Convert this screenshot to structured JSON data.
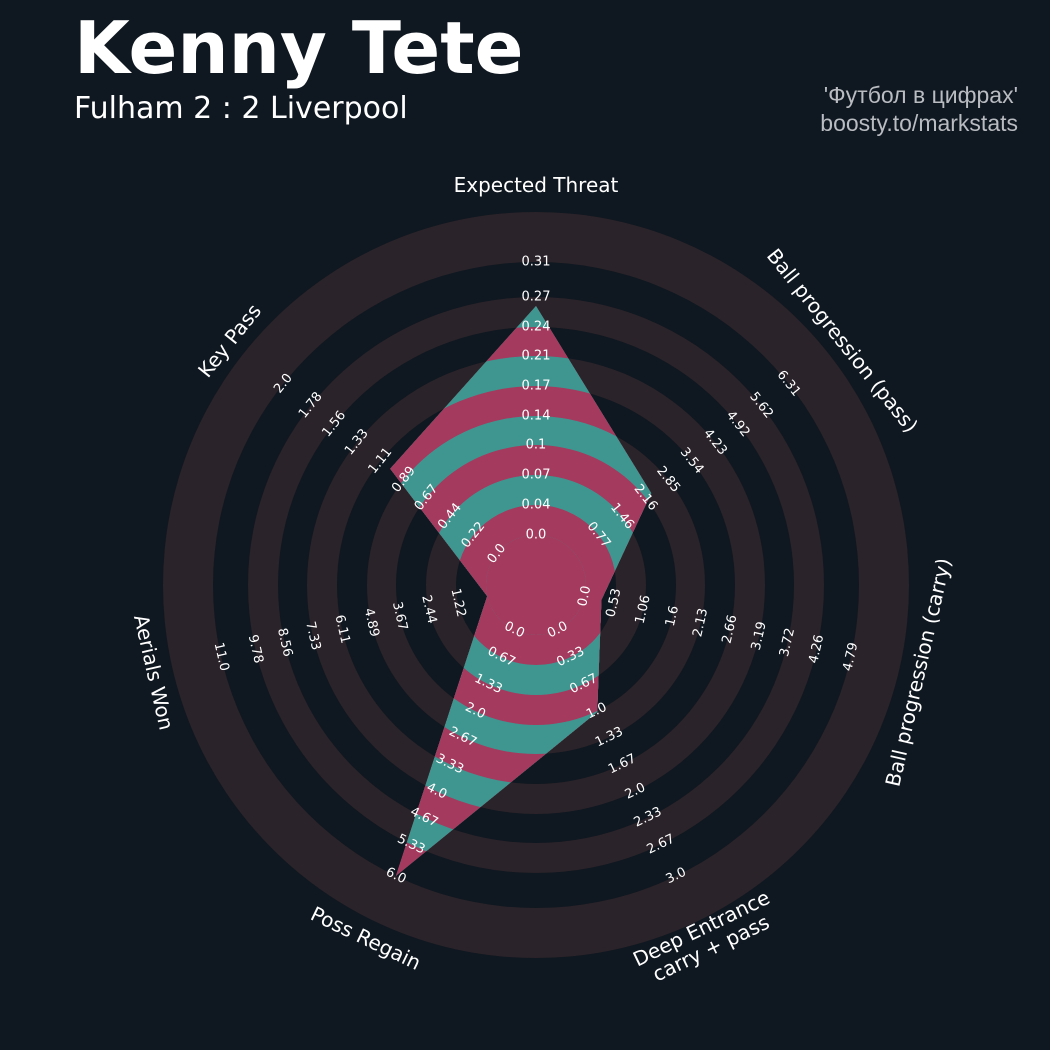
{
  "header": {
    "player": "Kenny Tete",
    "match": "Fulham 2 : 2 Liverpool",
    "credit_line1": "'Футбол в цифрах'",
    "credit_line2": "boosty.to/markstats"
  },
  "colors": {
    "background": "#0f1720",
    "ring_band": "#2a2329",
    "fill_a": "#a43a5e",
    "fill_b": "#3f9690",
    "text": "#ffffff",
    "muted": "#b9bcc1"
  },
  "chart_data": {
    "type": "radar",
    "title": "Kenny Tete",
    "subtitle": "Fulham 2 : 2 Liverpool",
    "axes": [
      {
        "label": "Expected Threat",
        "value": 0.26,
        "ticks": [
          "0.0",
          "0.04",
          "0.07",
          "0.1",
          "0.14",
          "0.17",
          "0.21",
          "0.24",
          "0.27",
          "0.31"
        ]
      },
      {
        "label": "Ball progression (pass)",
        "value": 2.3,
        "ticks": [
          "0.77",
          "1.46",
          "2.16",
          "2.85",
          "3.54",
          "4.23",
          "4.92",
          "5.62",
          "6.31"
        ]
      },
      {
        "label": "Ball progression (carry)",
        "value": 0.3,
        "ticks": [
          "0.0",
          "0.53",
          "1.06",
          "1.6",
          "2.13",
          "2.66",
          "3.19",
          "3.72",
          "4.26",
          "4.79"
        ]
      },
      {
        "label": "Deep Entrance carry + pass",
        "label_lines": [
          "Deep Entrance",
          "carry + pass"
        ],
        "value": 1.0,
        "ticks": [
          "0.0",
          "0.33",
          "0.67",
          "1.0",
          "1.33",
          "1.67",
          "2.0",
          "2.33",
          "2.67",
          "3.0"
        ]
      },
      {
        "label": "Poss Regain",
        "value": 6.0,
        "ticks": [
          "0.0",
          "0.67",
          "1.33",
          "2.0",
          "2.67",
          "3.33",
          "4.0",
          "4.67",
          "5.33",
          "6.0"
        ]
      },
      {
        "label": "Aerials Won",
        "value": 0.0,
        "ticks": [
          "1.22",
          "2.44",
          "3.67",
          "4.89",
          "6.11",
          "7.33",
          "8.56",
          "9.78",
          "11.0"
        ]
      },
      {
        "label": "Key Pass",
        "value": 1.0,
        "ticks": [
          "0.0",
          "0.22",
          "0.44",
          "0.67",
          "0.89",
          "1.11",
          "1.33",
          "1.56",
          "1.78",
          "2.0"
        ]
      }
    ]
  }
}
